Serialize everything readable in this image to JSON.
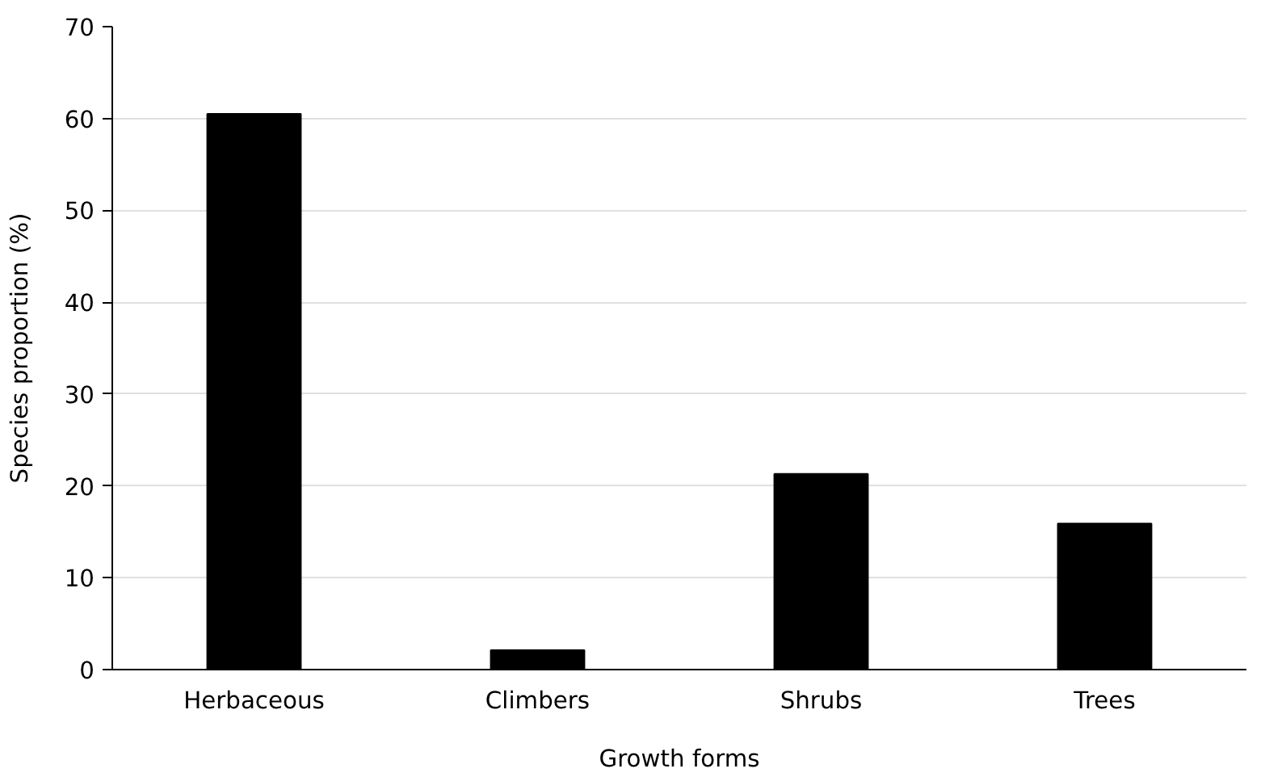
{
  "chart_data": {
    "type": "bar",
    "xlabel": "Growth forms",
    "ylabel": "Species proportion (%)",
    "categories": [
      "Herbaceous",
      "Climbers",
      "Shrubs",
      "Trees"
    ],
    "values": [
      60.5,
      2.1,
      21.3,
      15.9
    ],
    "color": "#000000",
    "ylim": [
      0,
      70
    ],
    "yticks": [
      0,
      10,
      20,
      30,
      40,
      50,
      60,
      70
    ],
    "grid": "y"
  }
}
